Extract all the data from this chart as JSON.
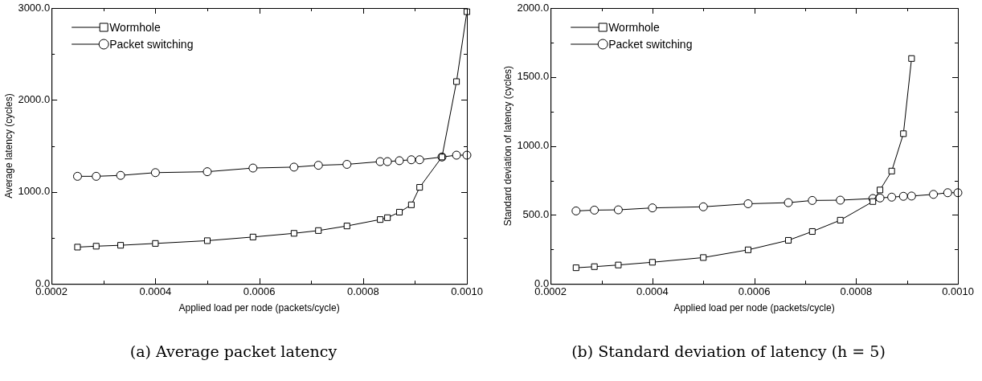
{
  "chart_data": [
    {
      "type": "line",
      "title": "(a) Average packet latency",
      "xlabel": "Applied load per node (packets/cycle)",
      "ylabel": "Average latency (cycles)",
      "x": [
        0.00025,
        0.000286,
        0.000333,
        0.0004,
        0.0005,
        0.000588,
        0.000667,
        0.000714,
        0.000769,
        0.000833,
        0.000847,
        0.00087,
        0.000893,
        0.000909,
        0.000952,
        0.00098,
        0.001
      ],
      "series": [
        {
          "name": "Wormhole",
          "color": "#000000",
          "marker": "square",
          "values": [
            400,
            410,
            420,
            440,
            470,
            510,
            550,
            580,
            630,
            700,
            720,
            780,
            860,
            1050,
            1380,
            2200,
            2960
          ]
        },
        {
          "name": "Packet switching",
          "color": "#000000",
          "marker": "circle",
          "values": [
            1170,
            1170,
            1180,
            1210,
            1220,
            1260,
            1270,
            1290,
            1300,
            1330,
            1330,
            1340,
            1350,
            1350,
            1380,
            1400,
            1400
          ]
        }
      ],
      "xlim": [
        0.0002,
        0.001
      ],
      "xticks": [
        {
          "value": 0.0002,
          "label": "0.0002"
        },
        {
          "value": 0.0003,
          "label": null
        },
        {
          "value": 0.0004,
          "label": "0.0004"
        },
        {
          "value": 0.0005,
          "label": null
        },
        {
          "value": 0.0006,
          "label": "0.0006"
        },
        {
          "value": 0.0007,
          "label": null
        },
        {
          "value": 0.0008,
          "label": "0.0008"
        },
        {
          "value": 0.0009,
          "label": null
        },
        {
          "value": 0.001,
          "label": "0.0010"
        }
      ],
      "ylim": [
        0,
        3000
      ],
      "yticks": [
        {
          "value": 0,
          "label": "0.0"
        },
        {
          "value": 500,
          "label": null
        },
        {
          "value": 1000,
          "label": "1000.0"
        },
        {
          "value": 1500,
          "label": null
        },
        {
          "value": 2000,
          "label": "2000.0"
        },
        {
          "value": 2500,
          "label": null
        },
        {
          "value": 3000,
          "label": "3000.0"
        }
      ],
      "legend": "top left"
    },
    {
      "type": "line",
      "title": "(b) Standard deviation of latency (h = 5)",
      "xlabel": "Applied load per node (packets/cycle)",
      "ylabel": "Standard deviation of latency (cycles)",
      "x": [
        0.00025,
        0.000286,
        0.000333,
        0.0004,
        0.0005,
        0.000588,
        0.000667,
        0.000714,
        0.000769,
        0.000833,
        0.000847,
        0.00087,
        0.000893,
        0.000909,
        0.000952,
        0.00098,
        0.001
      ],
      "series": [
        {
          "name": "Wormhole",
          "color": "#000000",
          "marker": "square",
          "values": [
            117,
            125,
            137,
            157,
            191,
            247,
            316,
            380,
            462,
            597,
            681,
            818,
            1089,
            1634,
            null,
            null,
            null
          ]
        },
        {
          "name": "Packet switching",
          "color": "#000000",
          "marker": "circle",
          "values": [
            529,
            535,
            537,
            551,
            559,
            581,
            589,
            605,
            607,
            619,
            623,
            629,
            635,
            637,
            649,
            661,
            661
          ]
        }
      ],
      "xlim": [
        0.0002,
        0.001
      ],
      "xticks": [
        {
          "value": 0.0002,
          "label": "0.0002"
        },
        {
          "value": 0.0003,
          "label": null
        },
        {
          "value": 0.0004,
          "label": "0.0004"
        },
        {
          "value": 0.0005,
          "label": null
        },
        {
          "value": 0.0006,
          "label": "0.0006"
        },
        {
          "value": 0.0007,
          "label": null
        },
        {
          "value": 0.0008,
          "label": "0.0008"
        },
        {
          "value": 0.0009,
          "label": null
        },
        {
          "value": 0.001,
          "label": "0.0010"
        }
      ],
      "ylim": [
        0,
        2000
      ],
      "yticks": [
        {
          "value": 0,
          "label": "0.0"
        },
        {
          "value": 250,
          "label": null
        },
        {
          "value": 500,
          "label": "500.0"
        },
        {
          "value": 750,
          "label": null
        },
        {
          "value": 1000,
          "label": "1000.0"
        },
        {
          "value": 1250,
          "label": null
        },
        {
          "value": 1500,
          "label": "1500.0"
        },
        {
          "value": 1750,
          "label": null
        },
        {
          "value": 2000,
          "label": "2000.0"
        }
      ],
      "legend": "top left"
    }
  ]
}
